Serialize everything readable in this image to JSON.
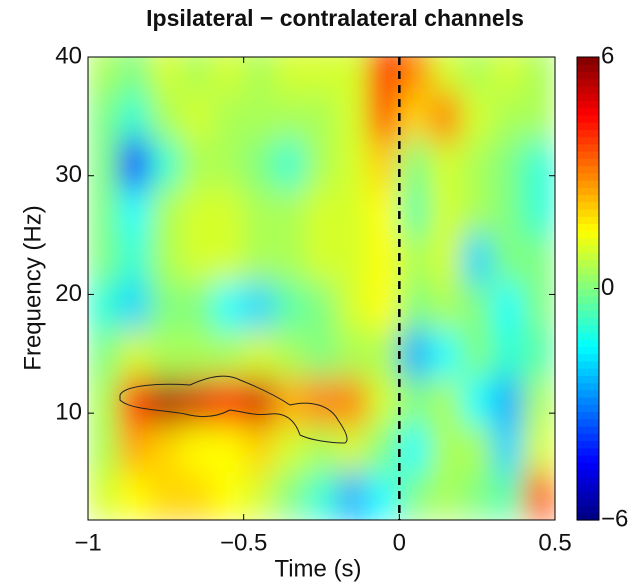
{
  "chart_data": {
    "type": "heatmap",
    "title": "Ipsilateral − contralateral channels",
    "x_label": "Time (s)",
    "y_label": "Frequency (Hz)",
    "x": [
      -0.95,
      -0.85,
      -0.75,
      -0.65,
      -0.55,
      -0.45,
      -0.35,
      -0.25,
      -0.15,
      -0.05,
      0.05,
      0.15,
      0.25,
      0.35,
      0.45
    ],
    "y": [
      3,
      7,
      11,
      15,
      19,
      23,
      27,
      31,
      35,
      39
    ],
    "z": [
      [
        1,
        1.5,
        2,
        2,
        1.5,
        1,
        0,
        -1,
        -2.5,
        -1.5,
        0,
        0.5,
        0,
        -0.5,
        3.5
      ],
      [
        0.5,
        2.5,
        2,
        1.5,
        1.5,
        2,
        1,
        0.5,
        1,
        0,
        -1.5,
        0.5,
        0.5,
        -2,
        1
      ],
      [
        0.5,
        4,
        5.5,
        5,
        4.5,
        5,
        2.5,
        3,
        3,
        1,
        0,
        0.5,
        -1.5,
        -2.5,
        0.5
      ],
      [
        0,
        1,
        0.5,
        0.5,
        0.5,
        1,
        0.5,
        0,
        0.5,
        0.5,
        -2.5,
        -1.5,
        0,
        -1,
        -0.5
      ],
      [
        -1,
        -2,
        0,
        0,
        -1.5,
        -2,
        -0.5,
        0,
        1,
        1.5,
        0,
        0.5,
        0,
        -1.5,
        0
      ],
      [
        0,
        -1,
        0.5,
        1,
        1,
        0.5,
        0.5,
        1,
        1,
        1.5,
        0.5,
        1,
        -2,
        0,
        0
      ],
      [
        0,
        -1.5,
        0.5,
        1,
        1,
        0.5,
        0.5,
        1,
        1,
        1.5,
        -0.5,
        1,
        0.5,
        0,
        -1
      ],
      [
        0,
        -4.5,
        -1,
        0.5,
        0.5,
        0,
        -1,
        0.5,
        1,
        2,
        0,
        1,
        0.5,
        0,
        -1
      ],
      [
        0,
        -1,
        0.5,
        1,
        0.5,
        0.5,
        0.5,
        0.5,
        1,
        3.5,
        2,
        3,
        1,
        0.5,
        0.5
      ],
      [
        0.5,
        0,
        1,
        0.5,
        1,
        0.5,
        1,
        1,
        1,
        4,
        3,
        1,
        0.5,
        1,
        0.5
      ]
    ],
    "xlim": [
      -1,
      0.5
    ],
    "ylim": [
      1,
      40
    ],
    "xticks": [
      {
        "value": -1,
        "label": "−1"
      },
      {
        "value": -0.5,
        "label": "−0.5"
      },
      0,
      0.5
    ],
    "yticks": [
      10,
      20,
      30,
      40
    ],
    "clim": [
      -6,
      6
    ],
    "cticks": [
      {
        "value": -6,
        "label": "−6"
      },
      0,
      6
    ],
    "colormap": "jet",
    "vline": 0
  }
}
